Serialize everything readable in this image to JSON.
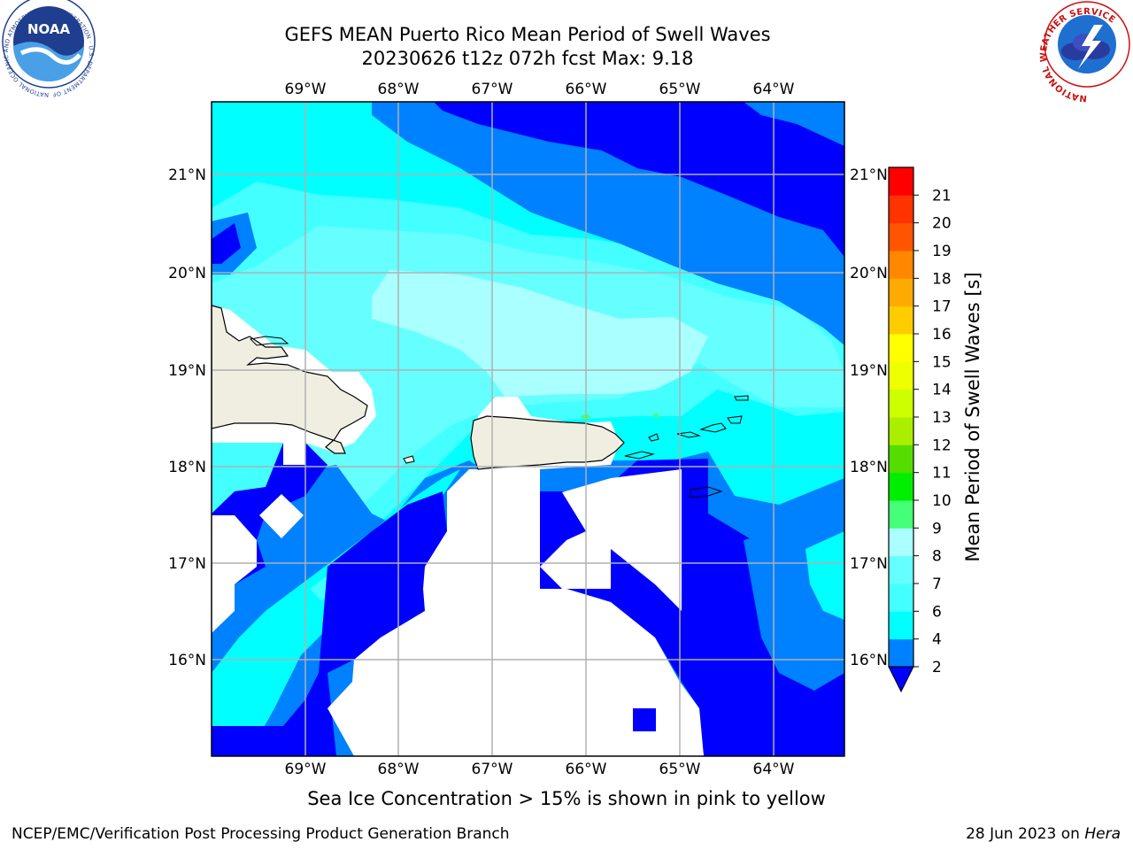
{
  "title_line1": "GEFS MEAN Puerto Rico Mean Period of Swell Waves",
  "title_line2": "20230626 t12z 072h fcst   Max: 9.18",
  "subtitle": "Sea Ice Concentration > 15% is shown in pink to yellow",
  "footer_left": "NCEP/EMC/Verification Post Processing Product Generation Branch",
  "footer_right_date": "28 Jun 2023 on ",
  "footer_right_host": "Hera",
  "logos": {
    "noaa_text": "NOAA",
    "noaa_ring": "NATIONAL OCEANIC AND ATMOSPHERIC ADMINISTRATION · U.S. DEPARTMENT OF COMMERCE",
    "nws_ring": "NATIONAL WEATHER SERVICE"
  },
  "map": {
    "lon_labels": [
      "69°W",
      "68°W",
      "67°W",
      "66°W",
      "65°W",
      "64°W"
    ],
    "lat_labels": [
      "21°N",
      "20°N",
      "19°N",
      "18°N",
      "17°N",
      "16°N"
    ],
    "lon_range": [
      -70.0,
      -63.27
    ],
    "lat_range": [
      15.0,
      21.75
    ],
    "colors": {
      "land": "#efeee0",
      "no_data": "#ffffff",
      "grid": "#b0b0b0"
    }
  },
  "colorbar": {
    "label": "Mean Period of Swell Waves [s]",
    "tick_labels": [
      "2",
      "4",
      "6",
      "7",
      "8",
      "9",
      "10",
      "11",
      "12",
      "13",
      "14",
      "15",
      "16",
      "17",
      "18",
      "19",
      "20",
      "21"
    ],
    "bins": [
      {
        "from": "2",
        "to": "4",
        "color": "#0081ff"
      },
      {
        "from": "4",
        "to": "6",
        "color": "#00ffff"
      },
      {
        "from": "6",
        "to": "7",
        "color": "#44ffff"
      },
      {
        "from": "7",
        "to": "8",
        "color": "#66ffff"
      },
      {
        "from": "8",
        "to": "9",
        "color": "#aaffff"
      },
      {
        "from": "9",
        "to": "10",
        "color": "#44ff77"
      },
      {
        "from": "10",
        "to": "11",
        "color": "#00ee00"
      },
      {
        "from": "11",
        "to": "12",
        "color": "#55dd00"
      },
      {
        "from": "12",
        "to": "13",
        "color": "#aaee00"
      },
      {
        "from": "13",
        "to": "14",
        "color": "#ccff00"
      },
      {
        "from": "14",
        "to": "15",
        "color": "#eeff00"
      },
      {
        "from": "15",
        "to": "16",
        "color": "#ffff00"
      },
      {
        "from": "16",
        "to": "17",
        "color": "#ffcc00"
      },
      {
        "from": "17",
        "to": "18",
        "color": "#ffaa00"
      },
      {
        "from": "18",
        "to": "19",
        "color": "#ff8800"
      },
      {
        "from": "19",
        "to": "20",
        "color": "#ff5500"
      },
      {
        "from": "20",
        "to": "21",
        "color": "#ff3300"
      },
      {
        "from": "21",
        "to": "",
        "color": "#ff0000"
      }
    ],
    "under_color": "#0000ff"
  }
}
